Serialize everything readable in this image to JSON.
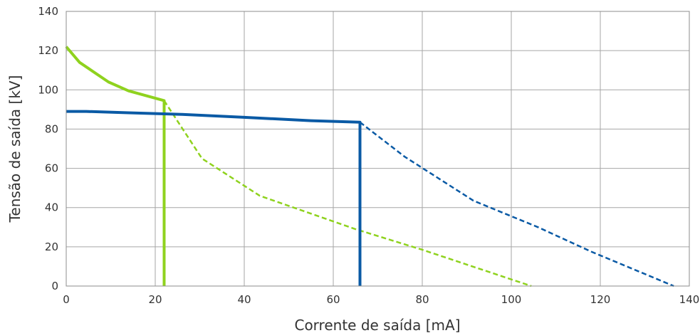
{
  "chart_data": {
    "type": "line",
    "title": "",
    "xlabel": "Corrente de saída [mA]",
    "ylabel": "Tensão de saída [kV]",
    "xlim": [
      0,
      140
    ],
    "ylim": [
      0,
      140
    ],
    "xticks": [
      0,
      20,
      40,
      60,
      80,
      100,
      120,
      140
    ],
    "yticks": [
      0,
      20,
      40,
      60,
      80,
      100,
      120,
      140
    ],
    "xtick_labels": [
      "0",
      "20",
      "40",
      "60",
      "80",
      "100",
      "120",
      "140"
    ],
    "ytick_labels": [
      "0",
      "20",
      "40",
      "60",
      "80",
      "100",
      "120",
      "140"
    ],
    "grid": true,
    "legend": "none",
    "series": [
      {
        "color": "#8fd21e",
        "style": "solid",
        "points": [
          [
            0,
            122
          ],
          [
            3,
            114
          ],
          [
            9.5,
            104
          ],
          [
            14,
            99.5
          ],
          [
            22,
            94.5
          ],
          [
            22,
            0
          ]
        ]
      },
      {
        "color": "#8fd21e",
        "style": "dashed",
        "points": [
          [
            22,
            94.5
          ],
          [
            30.5,
            65
          ],
          [
            43.5,
            46
          ],
          [
            65,
            29
          ],
          [
            80,
            18.5
          ],
          [
            104.5,
            0
          ]
        ]
      },
      {
        "color": "#0a5aa5",
        "style": "solid",
        "points": [
          [
            0,
            89
          ],
          [
            4.5,
            89
          ],
          [
            14,
            88.3
          ],
          [
            26,
            87.5
          ],
          [
            40,
            86
          ],
          [
            55,
            84.3
          ],
          [
            66,
            83.5
          ],
          [
            66,
            0
          ]
        ]
      },
      {
        "color": "#0a5aa5",
        "style": "dashed",
        "points": [
          [
            66,
            83.5
          ],
          [
            76,
            66
          ],
          [
            91.5,
            43.5
          ],
          [
            106,
            30
          ],
          [
            118,
            17.5
          ],
          [
            136.5,
            0
          ]
        ]
      }
    ]
  }
}
